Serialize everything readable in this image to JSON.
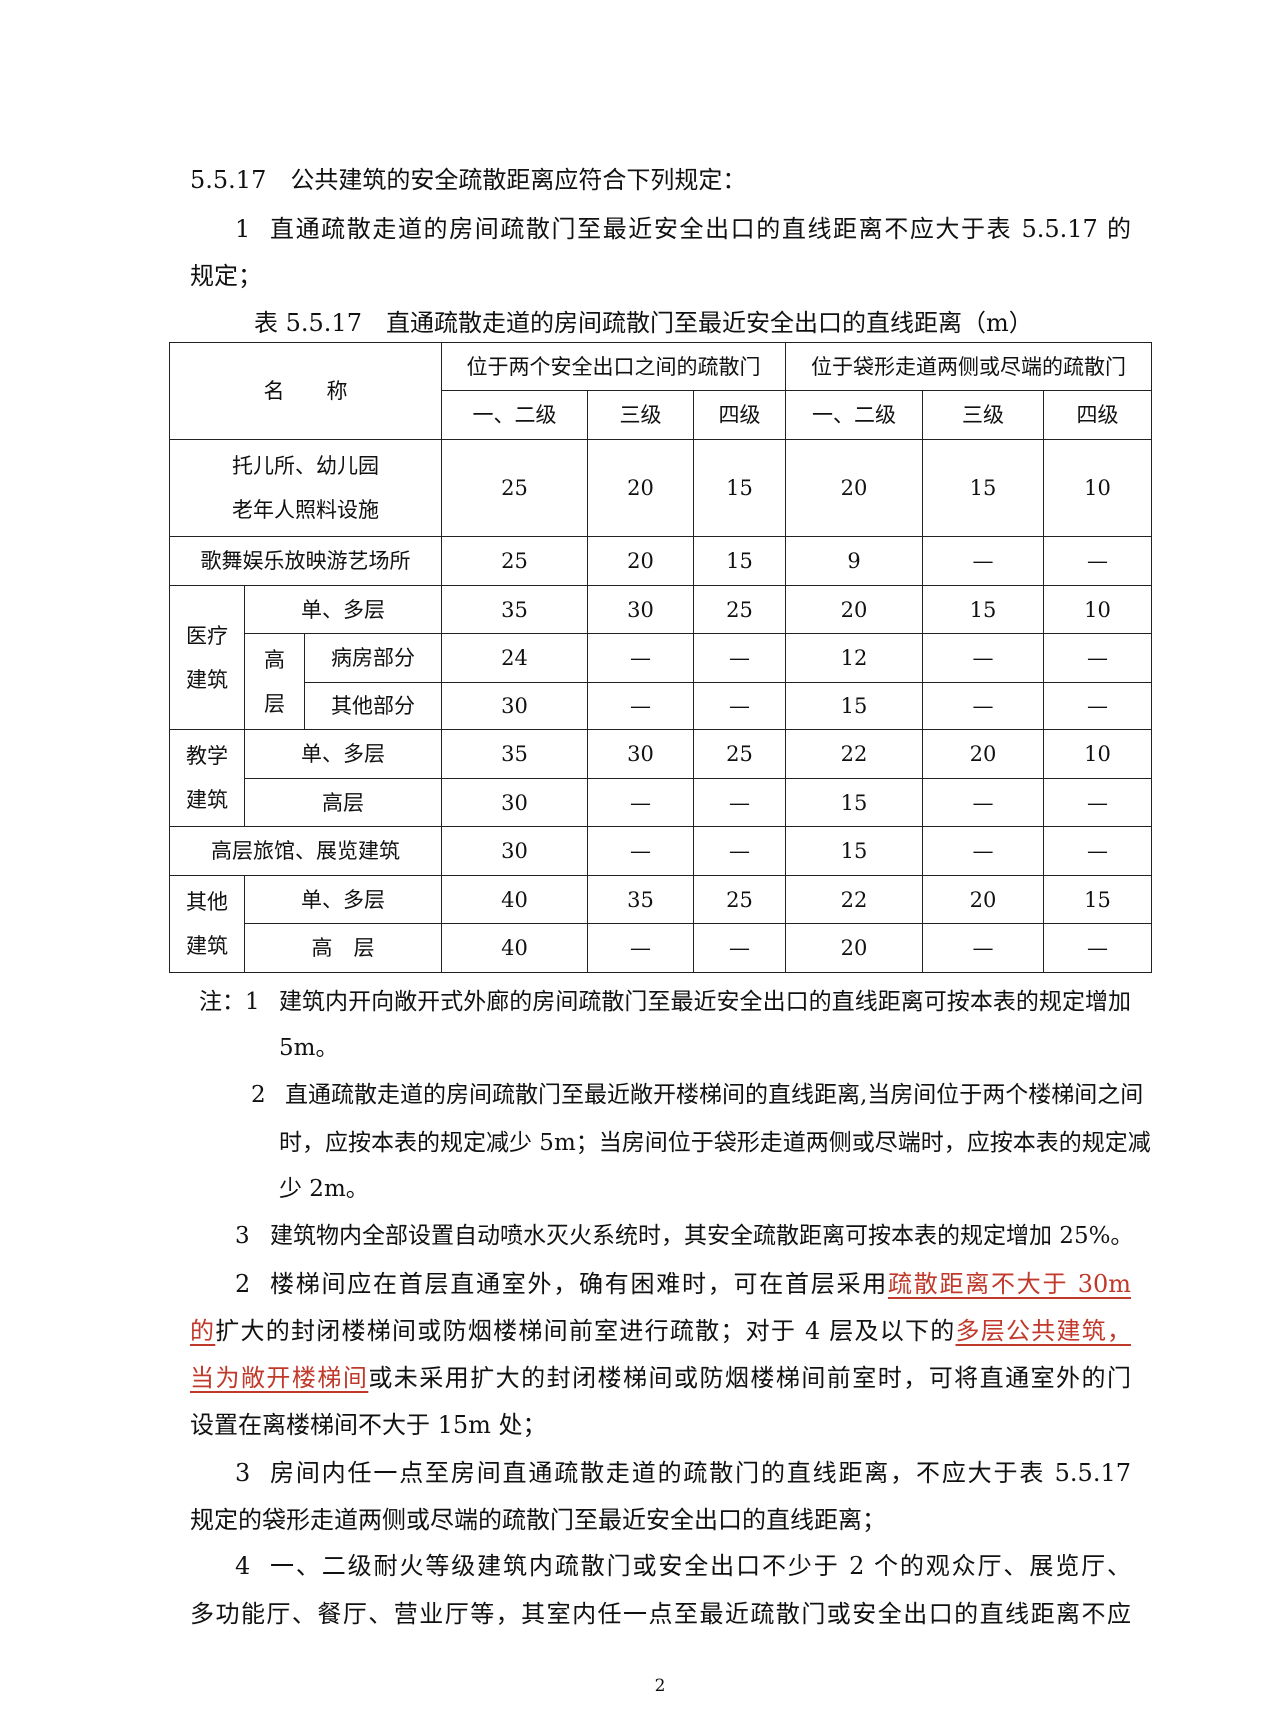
{
  "heading": "5.5.17　公共建筑的安全疏散距离应符合下列规定：",
  "item1": {
    "num": "1",
    "line1": "直通疏散走道的房间疏散门至最近安全出口的直线距离不应大于表 5.5.17 的",
    "line2": "规定；"
  },
  "table": {
    "caption": "表 5.5.17　直通疏散走道的房间疏散门至最近安全出口的直线距离（m）",
    "name_header": "名　　称",
    "group1": "位于两个安全出口之间的疏散门",
    "group2": "位于袋形走道两侧或尽端的疏散门",
    "grades": [
      "一、二级",
      "三级",
      "四级",
      "一、二级",
      "三级",
      "四级"
    ],
    "labels": {
      "nursery_1": "托儿所、幼儿园",
      "nursery_2": "老年人照料设施",
      "entertainment": "歌舞娱乐放映游艺场所",
      "medical_1": "医疗",
      "medical_2": "建筑",
      "single_multi": "单、多层",
      "high_1": "高",
      "high_2": "层",
      "ward": "病房部分",
      "other_part": "其他部分",
      "edu_1": "教学",
      "edu_2": "建筑",
      "high": "高层",
      "hotel": "高层旅馆、展览建筑",
      "other_1": "其他",
      "other_2": "建筑",
      "high_spaced": "高　层"
    },
    "rows": [
      [
        "25",
        "20",
        "15",
        "20",
        "15",
        "10"
      ],
      [
        "25",
        "20",
        "15",
        "9",
        "—",
        "—"
      ],
      [
        "35",
        "30",
        "25",
        "20",
        "15",
        "10"
      ],
      [
        "24",
        "—",
        "—",
        "12",
        "—",
        "—"
      ],
      [
        "30",
        "—",
        "—",
        "15",
        "—",
        "—"
      ],
      [
        "35",
        "30",
        "25",
        "22",
        "20",
        "10"
      ],
      [
        "30",
        "—",
        "—",
        "15",
        "—",
        "—"
      ],
      [
        "30",
        "—",
        "—",
        "15",
        "—",
        "—"
      ],
      [
        "40",
        "35",
        "25",
        "22",
        "20",
        "15"
      ],
      [
        "40",
        "—",
        "—",
        "20",
        "—",
        "—"
      ]
    ]
  },
  "notes": {
    "prefix": "注：1",
    "n1_line1": "建筑内开向敞开式外廊的房间疏散门至最近安全出口的直线距离可按本表的规定增加",
    "n1_line2": "5m。",
    "n2_num": "2",
    "n2_line1": "直通疏散走道的房间疏散门至最近敞开楼梯间的直线距离,当房间位于两个楼梯间之间",
    "n2_line2": "时，应按本表的规定减少 5m；当房间位于袋形走道两侧或尽端时，应按本表的规定减",
    "n2_line3": "少 2m。",
    "n3_num": "3",
    "n3_line1": "建筑物内全部设置自动喷水灭火系统时，其安全疏散距离可按本表的规定增加 25%。"
  },
  "item2": {
    "num": "2",
    "l1_a": "楼梯间应在首层直通室外，确有困难时，可在首层采用",
    "l1_red": "疏散距离不大于 30m",
    "l2_red1": "的",
    "l2_b": "扩大的封闭楼梯间或防烟楼梯间前室进行疏散；对于 4 层及以下的",
    "l2_red2": "多层公共建筑，",
    "l3_red": "当为敞开楼梯间",
    "l3_b": "或未采用扩大的封闭楼梯间或防烟楼梯间前室时，可将直通室外的门",
    "l4": "设置在离楼梯间不大于 15m 处；"
  },
  "item3": {
    "num": "3",
    "line1": "房间内任一点至房间直通疏散走道的疏散门的直线距离，不应大于表 5.5.17",
    "line2": "规定的袋形走道两侧或尽端的疏散门至最近安全出口的直线距离；"
  },
  "item4": {
    "num": "4",
    "line1": "一、二级耐火等级建筑内疏散门或安全出口不少于 2 个的观众厅、展览厅、",
    "line2": "多功能厅、餐厅、营业厅等，其室内任一点至最近疏散门或安全出口的直线距离不应"
  },
  "page_number": "2",
  "colors": {
    "highlight": "#c0392b",
    "text": "#111111"
  }
}
